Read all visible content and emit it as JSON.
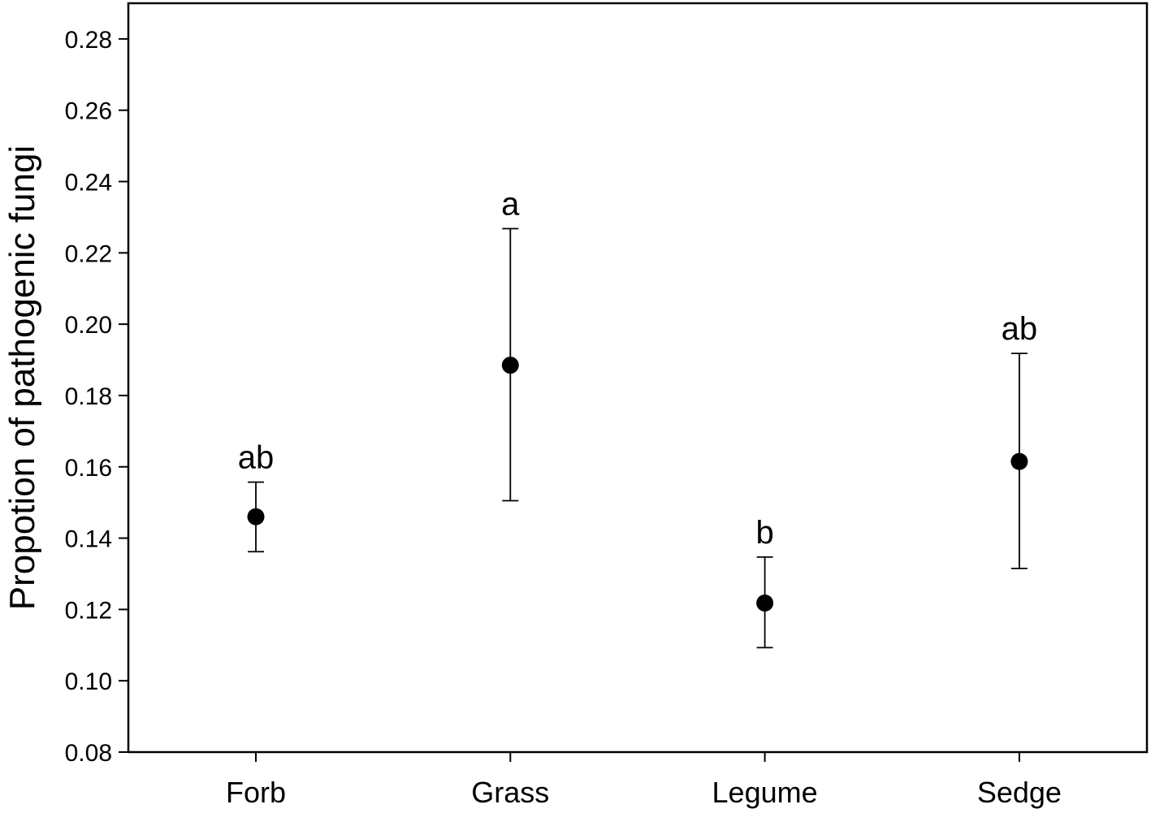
{
  "chart_data": {
    "type": "scatter",
    "title": "",
    "xlabel": "",
    "ylabel": "Propotion of pathogenic fungi",
    "ylim": [
      0.08,
      0.29
    ],
    "yticks": [
      "0.08",
      "0.10",
      "0.12",
      "0.14",
      "0.16",
      "0.18",
      "0.20",
      "0.22",
      "0.24",
      "0.26",
      "0.28"
    ],
    "grid": false,
    "legend": "none",
    "categories": [
      "Forb",
      "Grass",
      "Legume",
      "Sedge"
    ],
    "series": [
      {
        "values": [
          0.146,
          0.1885,
          0.1218,
          0.1615
        ],
        "upper": [
          0.1557,
          0.2268,
          0.1347,
          0.1918
        ],
        "lower": [
          0.1362,
          0.1505,
          0.1093,
          0.1315
        ],
        "labels": [
          "ab",
          "a",
          "b",
          "ab"
        ]
      }
    ],
    "colors": {
      "marker": "#000000",
      "axis": "#000000"
    }
  }
}
